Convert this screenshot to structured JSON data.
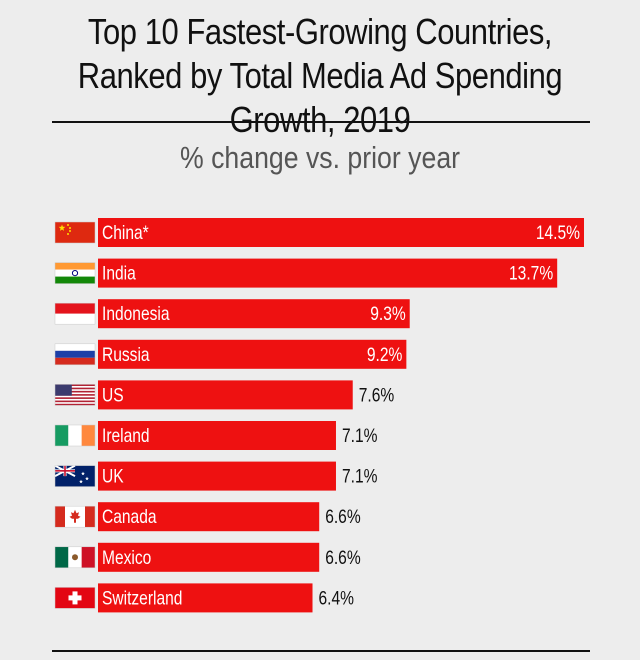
{
  "chart_data": {
    "type": "bar",
    "orientation": "horizontal",
    "title": "Top 10 Fastest-Growing Countries, Ranked by Total Media Ad Spending Growth, 2019",
    "subtitle": "% change vs. prior year",
    "categories": [
      "China*",
      "India",
      "Indonesia",
      "Russia",
      "US",
      "Ireland",
      "UK",
      "Canada",
      "Mexico",
      "Switzerland"
    ],
    "values": [
      14.5,
      13.7,
      9.3,
      9.2,
      7.6,
      7.1,
      7.1,
      6.6,
      6.6,
      6.4
    ],
    "value_labels": [
      "14.5%",
      "13.7%",
      "9.3%",
      "9.2%",
      "7.6%",
      "7.1%",
      "7.1%",
      "6.6%",
      "6.6%",
      "6.4%"
    ],
    "flags": [
      "china-flag-icon",
      "india-flag-icon",
      "indonesia-flag-icon",
      "russia-flag-icon",
      "us-flag-icon",
      "ireland-flag-icon",
      "uk-flag-icon",
      "canada-flag-icon",
      "mexico-flag-icon",
      "switzerland-flag-icon"
    ],
    "bar_color": "#ee1111",
    "background_color": "#ededed",
    "grid": false,
    "legend": "none"
  }
}
